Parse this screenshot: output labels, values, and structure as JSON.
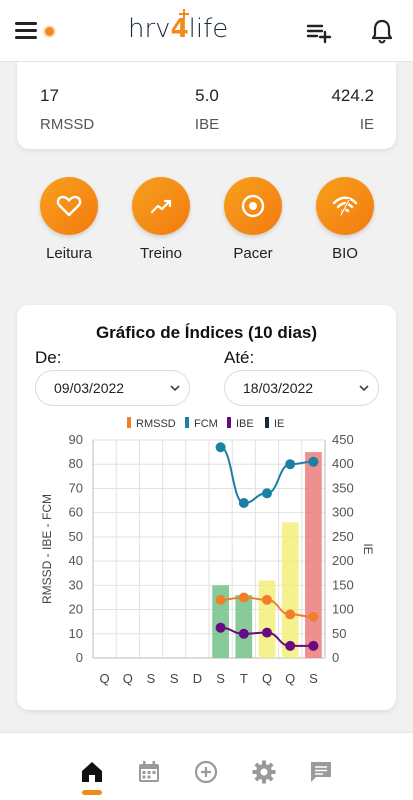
{
  "header": {
    "logo_prefix": "hrv",
    "logo_digit": "4",
    "logo_suffix": "life"
  },
  "stats": [
    {
      "value": "17",
      "label": "RMSSD"
    },
    {
      "value": "5.0",
      "label": "IBE"
    },
    {
      "value": "424.2",
      "label": "IE"
    }
  ],
  "actions": [
    {
      "label": "Leitura",
      "icon": "heart-icon"
    },
    {
      "label": "Treino",
      "icon": "trend-icon"
    },
    {
      "label": "Pacer",
      "icon": "target-icon"
    },
    {
      "label": "BIO",
      "icon": "bio-icon"
    }
  ],
  "chart_card": {
    "title": "Gráfico de Índices (10 dias)",
    "from_label": "De:",
    "to_label": "Até:",
    "from_date": "09/03/2022",
    "to_date": "18/03/2022"
  },
  "colors": {
    "accent": "#f28a1b",
    "rmssd": "#f07f2a",
    "fcm": "#1b7fa6",
    "ibe": "#6a0a83",
    "ie": "#1a2a3a"
  },
  "chart_data": {
    "type": "bar",
    "categories": [
      "Q",
      "Q",
      "S",
      "S",
      "D",
      "S",
      "T",
      "Q",
      "Q",
      "S"
    ],
    "left_ylabel": "RMSSD - IBE - FCM",
    "right_ylabel": "IE",
    "left_ylim": [
      0,
      90
    ],
    "right_ylim": [
      0,
      450
    ],
    "left_ticks": [
      "0",
      "10",
      "20",
      "30",
      "40",
      "50",
      "60",
      "70",
      "80",
      "90"
    ],
    "right_ticks": [
      "0",
      "50",
      "100",
      "150",
      "200",
      "250",
      "300",
      "350",
      "400",
      "450"
    ],
    "legend": [
      "RMSSD",
      "FCM",
      "IBE",
      "IE"
    ],
    "grid": true,
    "bars": [
      {
        "index": 5,
        "value": 30,
        "color": "#72c28a"
      },
      {
        "index": 6,
        "value": 26,
        "color": "#72c28a"
      },
      {
        "index": 7,
        "value": 32,
        "color": "#f2ee7a"
      },
      {
        "index": 8,
        "value": 56,
        "color": "#f2ee7a"
      },
      {
        "index": 9,
        "value": 85,
        "color": "#ec7b7b"
      }
    ],
    "series": [
      {
        "name": "RMSSD",
        "axis": "left",
        "x": [
          5,
          6,
          7,
          8,
          9
        ],
        "values": [
          24,
          25,
          24,
          18,
          17
        ]
      },
      {
        "name": "IBE",
        "axis": "left",
        "x": [
          5,
          6,
          7,
          8,
          9
        ],
        "values": [
          12.5,
          10,
          10.5,
          5,
          5
        ]
      },
      {
        "name": "FCM",
        "axis": "right",
        "x": [
          5,
          6,
          7,
          8,
          9
        ],
        "values": [
          435,
          320,
          340,
          400,
          405
        ]
      }
    ]
  }
}
